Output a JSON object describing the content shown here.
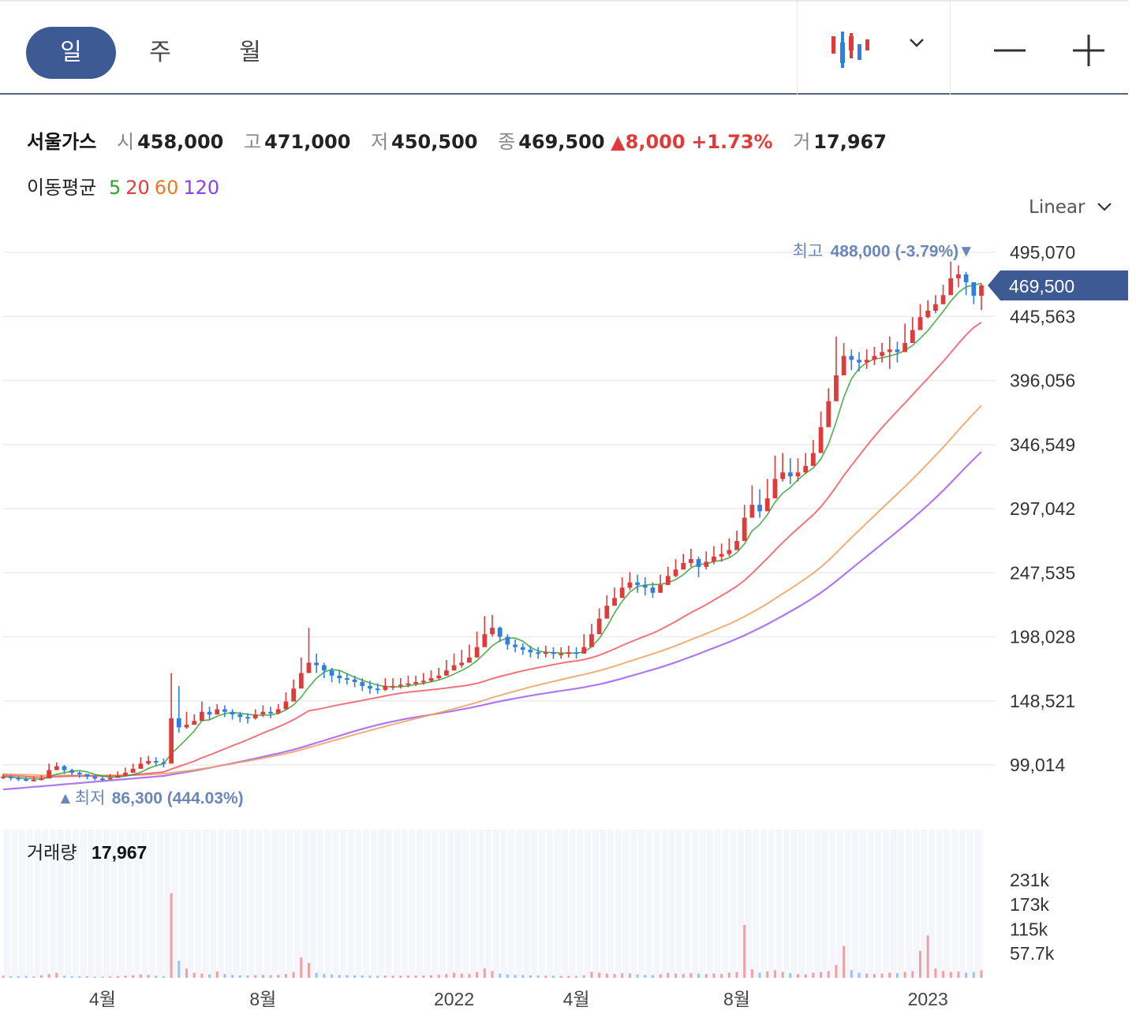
{
  "tabs": [
    {
      "label": "일",
      "active": true
    },
    {
      "label": "주",
      "active": false
    },
    {
      "label": "월",
      "active": false
    }
  ],
  "toolbar": {
    "chart_type_icon": "candle-icon",
    "zoom_out_icon": "minus-icon",
    "zoom_in_icon": "plus-icon"
  },
  "info": {
    "name": "서울가스",
    "open_label": "시",
    "open": "458,000",
    "high_label": "고",
    "high": "471,000",
    "low_label": "저",
    "low": "450,500",
    "close_label": "종",
    "close": "469,500",
    "change": "8,000",
    "change_pct": "+1.73%",
    "volume_label": "거",
    "volume": "17,967"
  },
  "ma": {
    "label": "이동평균",
    "p5": "5",
    "p20": "20",
    "p60": "60",
    "p120": "120"
  },
  "scale": {
    "label": "Linear"
  },
  "colors": {
    "up": "#e03b3b",
    "down": "#2f7fe0",
    "ma5": "#2ea52e",
    "ma20": "#ee5b66",
    "ma60": "#f0a060",
    "ma120": "#a060f0",
    "accent": "#3d5a94",
    "annotation": "#6b86b8"
  },
  "chart_data": {
    "type": "candlestick",
    "title": "서울가스",
    "y_ticks": [
      "495,070",
      "445,563",
      "396,056",
      "346,549",
      "297,042",
      "247,535",
      "198,028",
      "148,521",
      "99,014"
    ],
    "y_tick_values": [
      495070,
      445563,
      396056,
      346549,
      297042,
      247535,
      198028,
      148521,
      99014
    ],
    "ylim": [
      78000,
      495070
    ],
    "x_labels": [
      "4월",
      "8월",
      "2022",
      "4월",
      "8월",
      "2023"
    ],
    "x_label_index": [
      13,
      34,
      59,
      75,
      96,
      121
    ],
    "current_price": "469,500",
    "current_value": 469500,
    "high_annotation": {
      "label": "최고",
      "value": "488,000",
      "pct": "(-3.79%)",
      "marker": "▼",
      "price": 488000,
      "index": 126
    },
    "low_annotation": {
      "label": "최저",
      "value": "86,300",
      "pct": "(444.03%)",
      "marker": "▲",
      "price": 86300,
      "index": 4
    },
    "closes": [
      90000,
      89000,
      88000,
      87000,
      87500,
      88500,
      95000,
      98000,
      95000,
      93000,
      92000,
      90000,
      88500,
      88000,
      89000,
      90500,
      93000,
      96000,
      100000,
      102000,
      101000,
      100000,
      135000,
      128000,
      130000,
      133000,
      140000,
      138000,
      142000,
      140000,
      138000,
      136000,
      135000,
      138000,
      140000,
      139000,
      142000,
      148000,
      158000,
      170000,
      178000,
      176000,
      172000,
      168000,
      166000,
      165000,
      163000,
      160000,
      158000,
      157000,
      160000,
      160000,
      161000,
      162000,
      163000,
      164000,
      166000,
      168000,
      172000,
      176000,
      178000,
      182000,
      190000,
      200000,
      205000,
      198000,
      192000,
      190000,
      188000,
      186000,
      185000,
      186000,
      185000,
      185000,
      186000,
      185000,
      190000,
      200000,
      212000,
      222000,
      228000,
      236000,
      240000,
      238000,
      236000,
      232000,
      238000,
      245000,
      250000,
      255000,
      258000,
      252000,
      256000,
      260000,
      262000,
      265000,
      272000,
      290000,
      300000,
      295000,
      305000,
      320000,
      325000,
      322000,
      325000,
      330000,
      340000,
      360000,
      380000,
      400000,
      415000,
      412000,
      410000,
      412000,
      415000,
      418000,
      420000,
      418000,
      425000,
      435000,
      445000,
      450000,
      455000,
      462000,
      475000,
      478000,
      472000,
      461500,
      469500
    ],
    "highs": [
      92000,
      91000,
      90000,
      89500,
      90000,
      91000,
      100000,
      101000,
      99000,
      96000,
      94000,
      92000,
      91000,
      90000,
      92000,
      94000,
      97000,
      100000,
      105000,
      106000,
      105000,
      104000,
      170000,
      160000,
      140000,
      138000,
      148000,
      144000,
      146000,
      145000,
      142000,
      140000,
      139000,
      142000,
      145000,
      144000,
      146000,
      155000,
      165000,
      182000,
      205000,
      185000,
      178000,
      174000,
      172000,
      170000,
      168000,
      166000,
      164000,
      162000,
      166000,
      166000,
      166000,
      168000,
      168000,
      170000,
      172000,
      174000,
      180000,
      185000,
      188000,
      192000,
      202000,
      214000,
      215000,
      206000,
      200000,
      196000,
      193000,
      191000,
      190000,
      191000,
      190000,
      190000,
      191000,
      190000,
      200000,
      208000,
      220000,
      230000,
      236000,
      244000,
      248000,
      246000,
      244000,
      240000,
      246000,
      252000,
      258000,
      262000,
      266000,
      260000,
      264000,
      268000,
      270000,
      274000,
      280000,
      300000,
      315000,
      312000,
      320000,
      338000,
      340000,
      336000,
      336000,
      340000,
      350000,
      372000,
      390000,
      430000,
      425000,
      420000,
      418000,
      420000,
      422000,
      425000,
      430000,
      426000,
      440000,
      445000,
      455000,
      458000,
      462000,
      470000,
      488000,
      485000,
      480000,
      471000,
      471000
    ],
    "lows": [
      88000,
      87000,
      86500,
      86300,
      86500,
      87000,
      92000,
      95000,
      92000,
      91000,
      89000,
      88000,
      87000,
      86500,
      87500,
      89000,
      91000,
      93000,
      97000,
      99000,
      98000,
      97000,
      110000,
      124000,
      127000,
      130000,
      134000,
      134000,
      138000,
      136000,
      134000,
      132000,
      131000,
      134000,
      136000,
      135000,
      138000,
      143000,
      152000,
      165000,
      172000,
      170000,
      166000,
      163000,
      162000,
      161000,
      159000,
      156000,
      154000,
      154000,
      156000,
      157000,
      158000,
      159000,
      160000,
      161000,
      163000,
      165000,
      168000,
      172000,
      174000,
      178000,
      186000,
      195000,
      198000,
      194000,
      188000,
      186000,
      184000,
      182000,
      181000,
      182000,
      181000,
      181000,
      182000,
      181000,
      185000,
      195000,
      206000,
      216000,
      222000,
      230000,
      234000,
      232000,
      230000,
      228000,
      232000,
      240000,
      244000,
      250000,
      252000,
      244000,
      250000,
      254000,
      256000,
      260000,
      266000,
      282000,
      292000,
      290000,
      298000,
      314000,
      318000,
      316000,
      318000,
      324000,
      334000,
      352000,
      372000,
      392000,
      405000,
      404000,
      403000,
      405000,
      408000,
      410000,
      405000,
      410000,
      418000,
      428000,
      438000,
      444000,
      448000,
      455000,
      468000,
      468000,
      462000,
      455000,
      450500
    ],
    "ma5": [
      90000,
      89500,
      89000,
      88500,
      88300,
      88000,
      89600,
      91800,
      93000,
      94000,
      94600,
      93600,
      91700,
      90300,
      89600,
      89600,
      90300,
      91600,
      93300,
      96300,
      98400,
      99800,
      107600,
      113200,
      119000,
      125200,
      133200,
      133800,
      136600,
      138600,
      139600,
      138800,
      138200,
      137400,
      137400,
      137600,
      138800,
      141400,
      145400,
      151400,
      159200,
      166000,
      170800,
      172800,
      172000,
      169400,
      166800,
      164400,
      162400,
      160600,
      159600,
      159200,
      159400,
      160000,
      161200,
      162000,
      163200,
      164600,
      166600,
      169200,
      172000,
      175200,
      179600,
      185200,
      191000,
      195000,
      197000,
      197000,
      194600,
      189800,
      187000,
      186000,
      185800,
      185400,
      185400,
      185400,
      186200,
      190200,
      196600,
      205800,
      216400,
      225400,
      232600,
      236800,
      238000,
      238400,
      238400,
      239800,
      242200,
      246000,
      251200,
      254000,
      254200,
      256200,
      257000,
      259000,
      263000,
      269800,
      279800,
      284800,
      292400,
      302000,
      309000,
      313400,
      319400,
      324400,
      328400,
      335400,
      347000,
      364000,
      383000,
      397400,
      405400,
      409800,
      412800,
      413400,
      415000,
      416600,
      419200,
      423200,
      428600,
      434600,
      442000,
      449400,
      457400,
      464000,
      468400,
      469700,
      471100
    ],
    "ma20": [
      91000,
      90700,
      90400,
      90000,
      89700,
      89500,
      89600,
      89900,
      90100,
      90300,
      90400,
      90400,
      90400,
      90400,
      90500,
      90600,
      90800,
      91200,
      91800,
      92400,
      93000,
      93500,
      95800,
      97800,
      99800,
      101900,
      104500,
      106600,
      109000,
      111400,
      113800,
      116100,
      118500,
      121000,
      123600,
      126000,
      128400,
      131000,
      133900,
      137300,
      140900,
      141800,
      143000,
      144300,
      145500,
      146600,
      147700,
      148800,
      150000,
      151100,
      152300,
      153400,
      154400,
      155200,
      155800,
      156400,
      157000,
      157700,
      158400,
      159200,
      159900,
      160800,
      162000,
      163700,
      165700,
      167300,
      168800,
      170300,
      171700,
      173000,
      174200,
      175300,
      176500,
      177600,
      178600,
      179400,
      180400,
      181900,
      183800,
      186100,
      188600,
      191300,
      193800,
      196200,
      198500,
      200800,
      203500,
      206700,
      209800,
      213300,
      216700,
      219700,
      222900,
      226300,
      229800,
      233300,
      237100,
      241600,
      247000,
      252900,
      258700,
      264800,
      270800,
      276400,
      281800,
      287000,
      292300,
      298500,
      305900,
      313900,
      322600,
      330400,
      337900,
      345500,
      352800,
      359700,
      366200,
      372400,
      378600,
      385000,
      391400,
      397700,
      404200,
      410700,
      417600,
      424600,
      431200,
      437000,
      441000
    ],
    "ma60": [
      92000,
      91800,
      91600,
      91400,
      91200,
      91000,
      90900,
      90900,
      90900,
      90900,
      90900,
      90900,
      90900,
      90900,
      90900,
      90900,
      91000,
      91100,
      91300,
      91600,
      91900,
      92200,
      92900,
      93600,
      94300,
      95100,
      96000,
      96900,
      97900,
      98900,
      99900,
      101000,
      102000,
      103100,
      104200,
      105300,
      106500,
      107700,
      109100,
      110700,
      112400,
      114100,
      115800,
      117500,
      119100,
      120800,
      122400,
      124000,
      125600,
      127200,
      128800,
      130300,
      131800,
      133300,
      134800,
      136300,
      137800,
      139300,
      140800,
      142400,
      144000,
      145600,
      147300,
      149100,
      151000,
      152700,
      154400,
      156000,
      157600,
      159200,
      160700,
      162100,
      163500,
      164900,
      166300,
      167600,
      168900,
      170300,
      171800,
      173500,
      175300,
      177200,
      179100,
      181000,
      182900,
      184800,
      186800,
      188900,
      191100,
      193400,
      195800,
      198100,
      200500,
      202900,
      205400,
      207900,
      210600,
      213600,
      216900,
      220200,
      223700,
      227500,
      231300,
      235100,
      239000,
      243000,
      247200,
      251900,
      257100,
      262800,
      268800,
      274600,
      280300,
      286000,
      291600,
      297300,
      302900,
      308400,
      314000,
      319800,
      325800,
      331900,
      338100,
      344400,
      351000,
      357700,
      364200,
      370500,
      376700
    ],
    "ma120": [
      80000,
      80500,
      81000,
      81500,
      82000,
      82500,
      83000,
      83500,
      84000,
      84500,
      85000,
      85500,
      86000,
      86500,
      87000,
      87500,
      88000,
      88500,
      89000,
      89500,
      90000,
      90500,
      91500,
      92500,
      93500,
      94500,
      95600,
      96700,
      97900,
      99100,
      100300,
      101500,
      102700,
      104000,
      105300,
      106600,
      107900,
      109300,
      110800,
      112500,
      114300,
      116100,
      117900,
      119700,
      121500,
      123300,
      125100,
      126800,
      128400,
      129900,
      131300,
      132600,
      133800,
      134900,
      135900,
      136800,
      137800,
      138800,
      139800,
      140800,
      141900,
      143000,
      144200,
      145500,
      146900,
      148100,
      149300,
      150400,
      151500,
      152500,
      153500,
      154400,
      155300,
      156200,
      157100,
      158000,
      159000,
      160100,
      161300,
      162700,
      164200,
      165800,
      167500,
      169200,
      170900,
      172600,
      174400,
      176300,
      178300,
      180400,
      182600,
      184800,
      187100,
      189400,
      191700,
      194000,
      196500,
      199100,
      201900,
      204800,
      207800,
      211000,
      214200,
      217500,
      220900,
      224400,
      228100,
      232100,
      236400,
      241000,
      245800,
      250600,
      255400,
      260200,
      265000,
      269800,
      274600,
      279400,
      284300,
      289300,
      294500,
      299800,
      305300,
      311000,
      317000,
      323200,
      329300,
      335200,
      341000
    ],
    "volume_label": "거래량",
    "volume_value": "17,967",
    "volume_ticks": [
      "231k",
      "173k",
      "115k",
      "57.7k"
    ],
    "volume_tick_values": [
      231000,
      173000,
      115000,
      57700
    ],
    "volumes": [
      5000,
      4000,
      3500,
      4200,
      3000,
      6000,
      9000,
      12000,
      5000,
      4000,
      3800,
      3500,
      3000,
      2800,
      3200,
      4000,
      5000,
      6000,
      8000,
      7000,
      5000,
      4000,
      200000,
      40000,
      22000,
      12000,
      10000,
      8000,
      15000,
      9000,
      7000,
      6000,
      5500,
      6000,
      7000,
      6500,
      7000,
      9000,
      14000,
      48000,
      35000,
      12000,
      9000,
      8000,
      7000,
      6500,
      6000,
      5500,
      5000,
      4800,
      5200,
      5000,
      4800,
      5000,
      5200,
      5400,
      6000,
      7000,
      9000,
      12000,
      10000,
      9000,
      14000,
      22000,
      16000,
      10000,
      8000,
      7000,
      6500,
      6000,
      5500,
      5000,
      4800,
      4600,
      4500,
      4400,
      6000,
      14000,
      12000,
      10000,
      9000,
      11000,
      10000,
      8000,
      7000,
      6500,
      8000,
      12000,
      10000,
      9000,
      11000,
      10000,
      9000,
      10000,
      9000,
      12000,
      14000,
      125000,
      20000,
      12000,
      15000,
      18000,
      14000,
      11000,
      9000,
      8000,
      12000,
      14000,
      16000,
      30000,
      75000,
      18000,
      12000,
      10000,
      9000,
      10000,
      12000,
      11000,
      14000,
      16000,
      64000,
      100000,
      22000,
      16000,
      14000,
      15000,
      12000,
      14000,
      17967
    ]
  }
}
